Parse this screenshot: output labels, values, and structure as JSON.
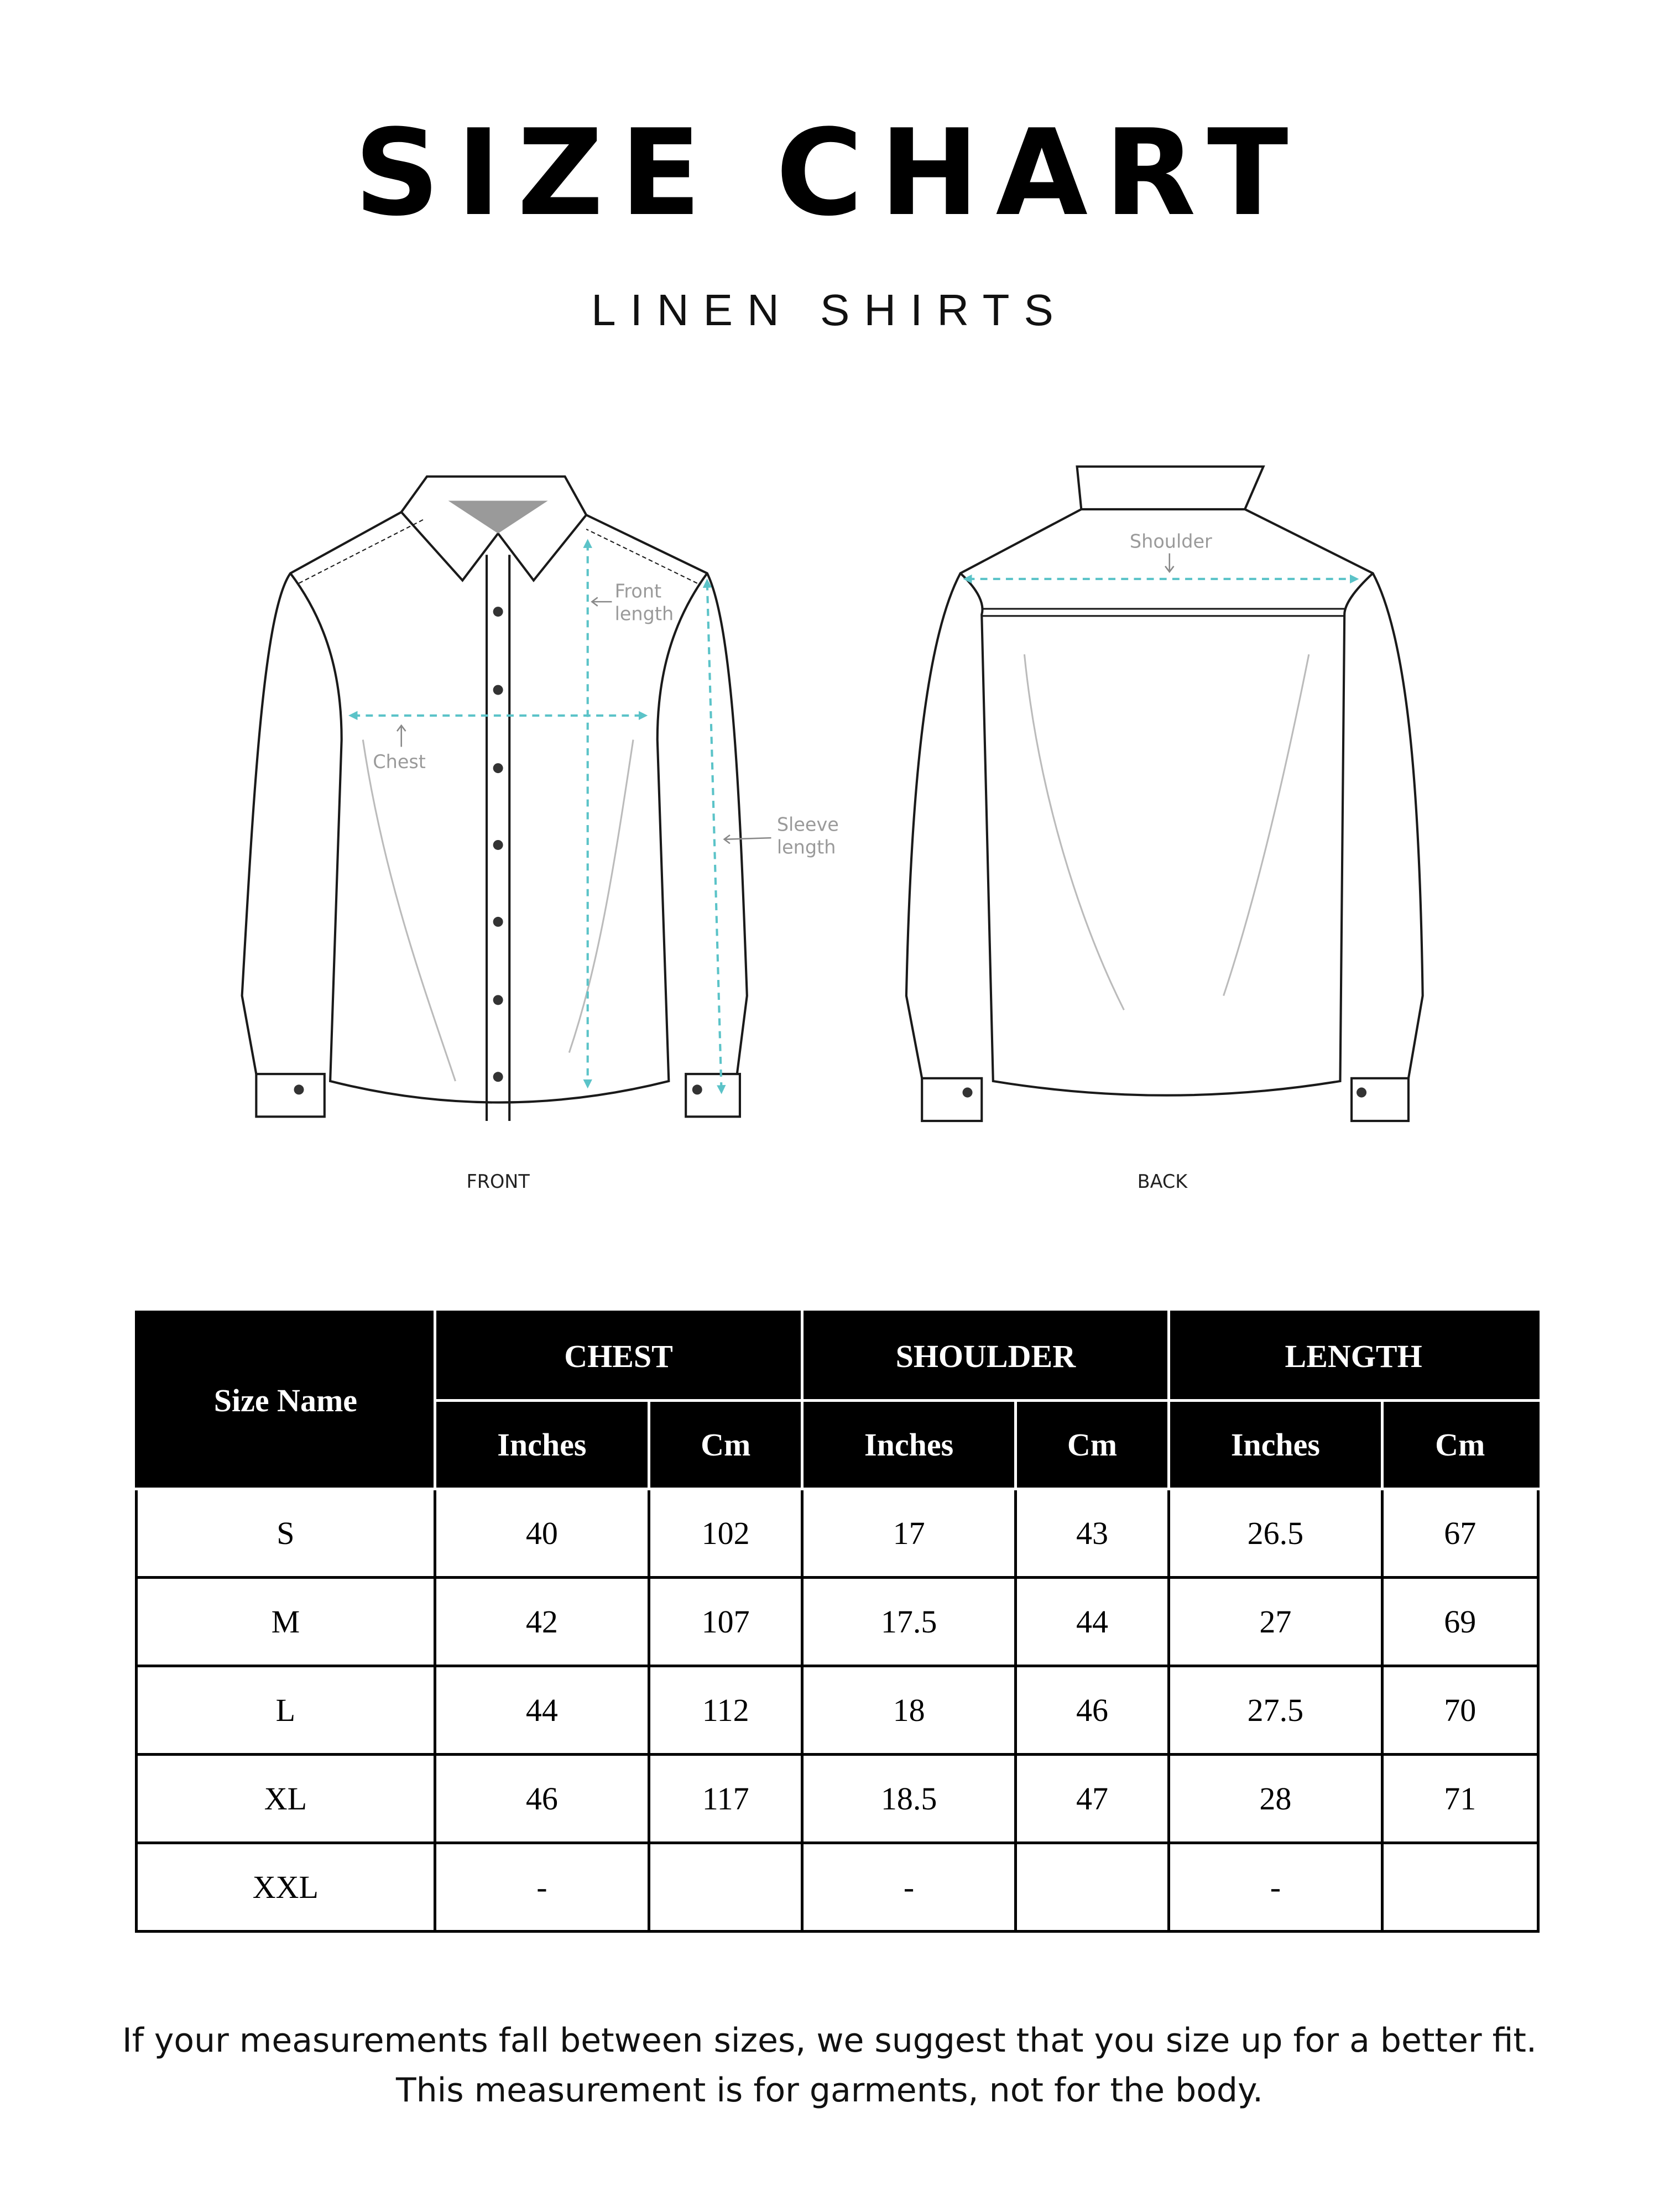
{
  "header": {
    "title": "SIZE CHART",
    "subtitle": "LINEN SHIRTS"
  },
  "diagram": {
    "front_label": "FRONT",
    "back_label": "BACK",
    "chest": "Chest",
    "front_length_1": "Front",
    "front_length_2": "length",
    "sleeve_1": "Sleeve",
    "sleeve_2": "length",
    "shoulder": "Shoulder",
    "measure_color": "#5bc3c8",
    "outline_color": "#1a1a1a",
    "label_color": "#9a9a9a"
  },
  "table": {
    "size_header": "Size Name",
    "groups": [
      "CHEST",
      "SHOULDER",
      "LENGTH"
    ],
    "units": [
      "Inches",
      "Cm",
      "Inches",
      "Cm",
      "Inches",
      "Cm"
    ],
    "rows": [
      [
        "S",
        "40",
        "102",
        "17",
        "43",
        "26.5",
        "67"
      ],
      [
        "M",
        "42",
        "107",
        "17.5",
        "44",
        "27",
        "69"
      ],
      [
        "L",
        "44",
        "112",
        "18",
        "46",
        "27.5",
        "70"
      ],
      [
        "XL",
        "46",
        "117",
        "18.5",
        "47",
        "28",
        "71"
      ],
      [
        "XXL",
        "-",
        "",
        "-",
        "",
        "-",
        ""
      ]
    ]
  },
  "footer": {
    "line1": "If your measurements fall between sizes, we suggest that you size up for a better fit.",
    "line2": "This measurement is for garments, not for the body."
  }
}
